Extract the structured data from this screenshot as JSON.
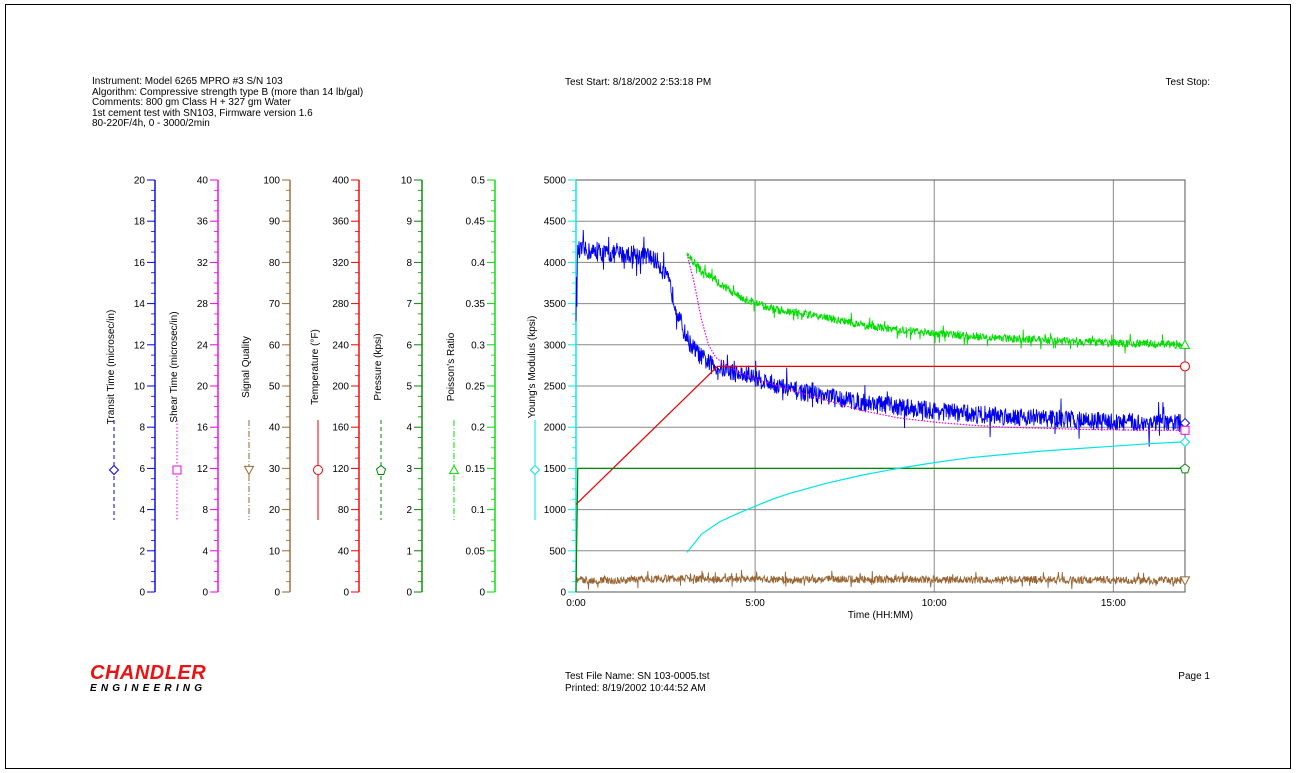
{
  "header": {
    "lines": [
      "Instrument: Model 6265 MPRO #3 S/N 103",
      "Algorithm: Compressive strength type B (more than 14 lb/gal)",
      "Comments: 800 gm Class H + 327 gm Water",
      "1st cement test with SN103, Firmware version 1.6",
      "80-220F/4h, 0 - 3000/2min"
    ],
    "test_start": "Test Start: 8/18/2002 2:53:18 PM",
    "test_stop": "Test Stop:"
  },
  "footer": {
    "file_name": "Test File Name: SN 103-0005.tst",
    "printed": "Printed: 8/19/2002 10:44:52 AM",
    "page": "Page 1"
  },
  "logo": {
    "name": "CHANDLER",
    "sub": "ENGINEERING"
  },
  "chart_data": {
    "type": "line",
    "xlabel": "Time (HH:MM)",
    "x_units": "hours",
    "xlim": [
      0,
      17
    ],
    "x_ticks": [
      {
        "value": 0,
        "label": "0:00"
      },
      {
        "value": 5,
        "label": "5:00"
      },
      {
        "value": 10,
        "label": "10:00"
      },
      {
        "value": 15,
        "label": "15:00"
      }
    ],
    "grid": true,
    "axes": [
      {
        "id": "transit",
        "label": "Transit Time (microsec/in)",
        "color": "#0000ee",
        "marker": "diamond",
        "dash": "dashed",
        "min": 0,
        "max": 20,
        "step": 2
      },
      {
        "id": "shear",
        "label": "Shear Time (microsec/in)",
        "color": "#ee00ee",
        "marker": "square",
        "dash": "dotted",
        "min": 0,
        "max": 40,
        "step": 4
      },
      {
        "id": "signal",
        "label": "Signal Quality",
        "color": "#996633",
        "marker": "triangle-down",
        "dash": "dashdot",
        "min": 0,
        "max": 100,
        "step": 10
      },
      {
        "id": "temperature",
        "label": "Temperature (°F)",
        "color": "#ee0000",
        "marker": "circle",
        "dash": "solid",
        "min": 0,
        "max": 400,
        "step": 40
      },
      {
        "id": "pressure",
        "label": "Pressure (kpsi)",
        "color": "#008800",
        "marker": "pentagon",
        "dash": "dashed",
        "min": 0,
        "max": 10,
        "step": 1
      },
      {
        "id": "poisson",
        "label": "Poisson's Ratio",
        "color": "#00dd00",
        "marker": "triangle-up",
        "dash": "dashdot",
        "min": 0,
        "max": 0.5,
        "step": 0.05
      },
      {
        "id": "youngs",
        "label": "Young's Modulus (kpsi)",
        "color": "#00e5e5",
        "marker": "diamond",
        "dash": "solid",
        "min": 0,
        "max": 5000,
        "step": 500
      }
    ],
    "series": [
      {
        "name": "Transit Time (microsec/in)",
        "axis": "transit",
        "noise": 0.9,
        "x": [
          0,
          0.05,
          0.5,
          1,
          1.5,
          2,
          2.3,
          2.6,
          2.8,
          3.0,
          3.2,
          3.5,
          3.8,
          4,
          4.5,
          5,
          5.5,
          6,
          7,
          8,
          9,
          10,
          11,
          12,
          13,
          14,
          15,
          16,
          16.9
        ],
        "y": [
          13.5,
          16.6,
          16.5,
          16.4,
          16.4,
          16.3,
          16.0,
          15.0,
          13.8,
          12.7,
          12.0,
          11.4,
          11.0,
          10.9,
          10.6,
          10.4,
          10.1,
          9.8,
          9.5,
          9.2,
          9.0,
          8.8,
          8.65,
          8.55,
          8.45,
          8.35,
          8.25,
          8.2,
          8.2
        ]
      },
      {
        "name": "Shear Time (microsec/in)",
        "axis": "shear",
        "noise": 0,
        "x": [
          3.1,
          3.3,
          3.5,
          3.7,
          3.9,
          4.1,
          4.5,
          5,
          6,
          7,
          8,
          9,
          10,
          11,
          12,
          13,
          14,
          15,
          16,
          16.9
        ],
        "y": [
          32.8,
          30,
          26.5,
          24,
          22.8,
          22.2,
          21.4,
          20.7,
          19.6,
          18.6,
          17.6,
          16.9,
          16.5,
          16.2,
          16.0,
          15.9,
          15.8,
          15.75,
          15.7,
          15.7
        ]
      },
      {
        "name": "Signal Quality",
        "axis": "signal",
        "noise": 1.8,
        "x": [
          0,
          1,
          2,
          3,
          4,
          5,
          6,
          7,
          8,
          9,
          10,
          11,
          12,
          13,
          14,
          15,
          16,
          16.9
        ],
        "y": [
          3,
          2.7,
          3.2,
          3.3,
          3.0,
          3.1,
          2.9,
          3.2,
          3.0,
          3.1,
          3.0,
          2.9,
          3.0,
          3.0,
          2.9,
          2.9,
          2.8,
          2.8
        ]
      },
      {
        "name": "Temperature (°F)",
        "axis": "temperature",
        "noise": 0,
        "x": [
          0,
          3.95,
          16.9
        ],
        "y": [
          85,
          219,
          219
        ]
      },
      {
        "name": "Pressure (kpsi)",
        "axis": "pressure",
        "noise": 0,
        "x": [
          0,
          0.05,
          16.9
        ],
        "y": [
          0,
          3.0,
          3.0
        ]
      },
      {
        "name": "Poisson's Ratio",
        "axis": "poisson",
        "noise": 0.0095,
        "x": [
          3.1,
          3.5,
          4,
          4.5,
          5,
          5.5,
          6,
          7,
          8,
          9,
          10,
          11,
          12,
          13,
          14,
          15,
          16,
          16.9
        ],
        "y": [
          0.41,
          0.39,
          0.375,
          0.36,
          0.35,
          0.344,
          0.34,
          0.333,
          0.324,
          0.318,
          0.314,
          0.311,
          0.308,
          0.306,
          0.304,
          0.302,
          0.301,
          0.3
        ]
      },
      {
        "name": "Young's Modulus (kpsi)",
        "axis": "youngs",
        "noise": 0,
        "x": [
          3.1,
          3.5,
          4,
          4.5,
          5,
          5.5,
          6,
          7,
          8,
          9,
          10,
          11,
          12,
          13,
          14,
          15,
          16,
          16.9
        ],
        "y": [
          480,
          700,
          850,
          950,
          1040,
          1130,
          1200,
          1320,
          1420,
          1500,
          1570,
          1630,
          1670,
          1710,
          1740,
          1770,
          1800,
          1820
        ]
      }
    ]
  }
}
